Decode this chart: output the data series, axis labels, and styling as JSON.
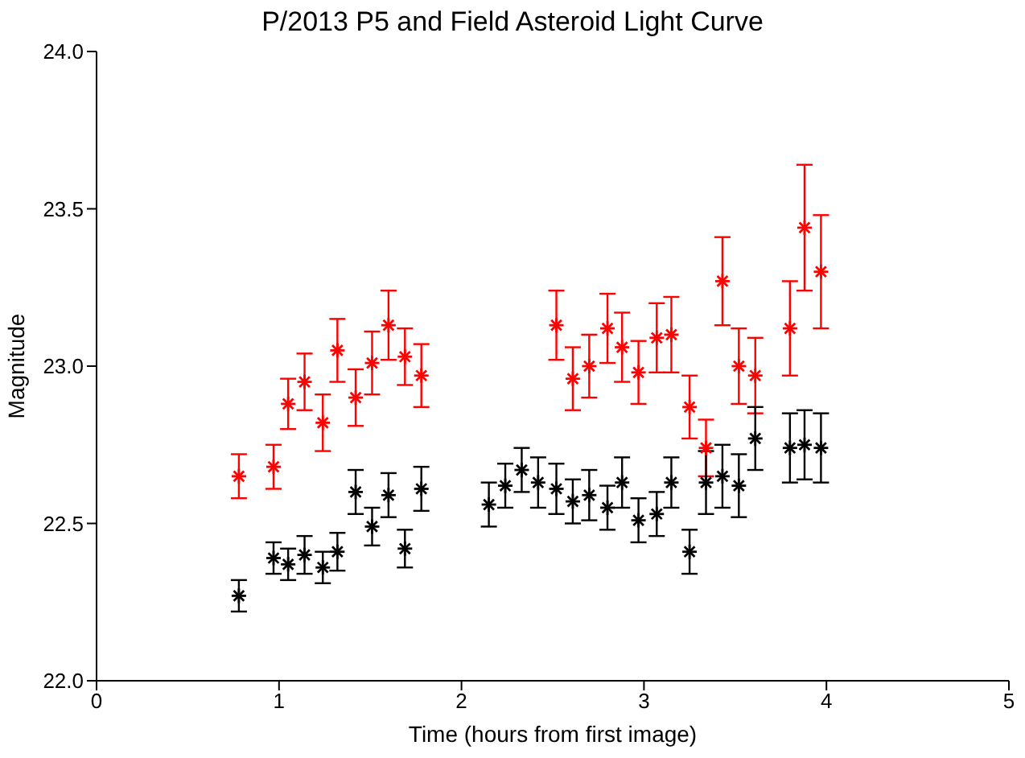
{
  "chart_data": {
    "type": "scatter",
    "title": "P/2013 P5 and Field Asteroid Light Curve",
    "xlabel": "Time (hours from first image)",
    "ylabel": "Magnitude",
    "xlim": [
      0,
      5
    ],
    "xticks": [
      0,
      1,
      2,
      3,
      4,
      5
    ],
    "ylim": [
      22.0,
      24.0
    ],
    "yticks": [
      {
        "value": 22.0,
        "label": "22.0"
      },
      {
        "value": 22.5,
        "label": "22.5"
      },
      {
        "value": 23.0,
        "label": "23.0"
      },
      {
        "value": 23.5,
        "label": "23.5"
      },
      {
        "value": 24.0,
        "label": "24.0"
      }
    ],
    "marker": "cross",
    "grid": false,
    "legend": false,
    "series": [
      {
        "color": "#ff0000",
        "x": [
          0.78,
          0.97,
          1.05,
          1.14,
          1.24,
          1.32,
          1.42,
          1.51,
          1.6,
          1.69,
          1.78,
          2.52,
          2.61,
          2.7,
          2.8,
          2.88,
          2.97,
          3.07,
          3.15,
          3.25,
          3.34,
          3.43,
          3.52,
          3.61,
          3.8,
          3.88,
          3.97
        ],
        "values": [
          22.65,
          22.68,
          22.88,
          22.95,
          22.82,
          23.05,
          22.9,
          23.01,
          23.13,
          23.03,
          22.97,
          23.13,
          22.96,
          23.0,
          23.12,
          23.06,
          22.98,
          23.09,
          23.1,
          22.87,
          22.74,
          23.27,
          23.0,
          22.97,
          23.12,
          23.44,
          23.3
        ],
        "errors": [
          0.07,
          0.07,
          0.08,
          0.09,
          0.09,
          0.1,
          0.09,
          0.1,
          0.11,
          0.09,
          0.1,
          0.11,
          0.1,
          0.1,
          0.11,
          0.11,
          0.1,
          0.11,
          0.12,
          0.1,
          0.09,
          0.14,
          0.12,
          0.12,
          0.15,
          0.2,
          0.18
        ]
      },
      {
        "color": "#000000",
        "x": [
          0.78,
          0.97,
          1.05,
          1.14,
          1.24,
          1.32,
          1.42,
          1.51,
          1.6,
          1.69,
          1.78,
          2.15,
          2.24,
          2.33,
          2.42,
          2.52,
          2.61,
          2.7,
          2.8,
          2.88,
          2.97,
          3.07,
          3.15,
          3.25,
          3.34,
          3.43,
          3.52,
          3.61,
          3.8,
          3.88,
          3.97
        ],
        "values": [
          22.27,
          22.39,
          22.37,
          22.4,
          22.36,
          22.41,
          22.6,
          22.49,
          22.59,
          22.42,
          22.61,
          22.56,
          22.62,
          22.67,
          22.63,
          22.61,
          22.57,
          22.59,
          22.55,
          22.63,
          22.51,
          22.53,
          22.63,
          22.41,
          22.63,
          22.65,
          22.62,
          22.77,
          22.74,
          22.75,
          22.74
        ],
        "errors": [
          0.05,
          0.05,
          0.05,
          0.06,
          0.05,
          0.06,
          0.07,
          0.06,
          0.07,
          0.06,
          0.07,
          0.07,
          0.07,
          0.07,
          0.08,
          0.08,
          0.07,
          0.08,
          0.07,
          0.08,
          0.07,
          0.07,
          0.08,
          0.07,
          0.1,
          0.1,
          0.1,
          0.1,
          0.11,
          0.11,
          0.11
        ]
      }
    ]
  }
}
